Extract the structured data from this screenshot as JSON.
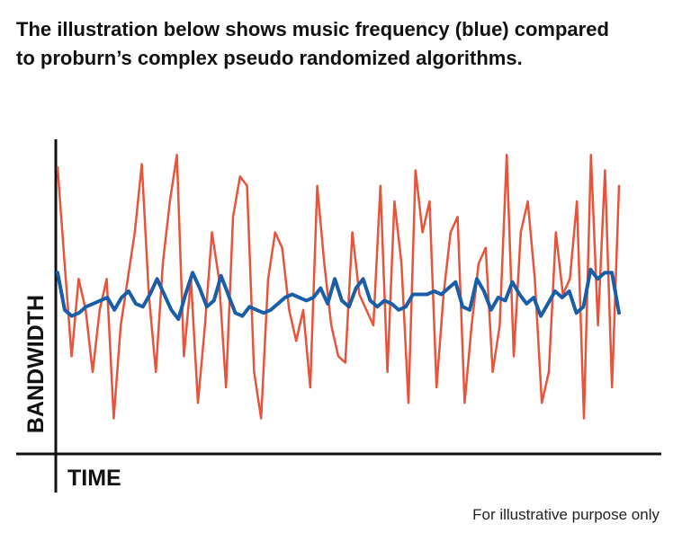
{
  "chart_data": {
    "type": "line",
    "title": [
      "The illustration below shows music frequency (blue) compared",
      "to proburn’s complex pseudo randomized algorithms."
    ],
    "x_label": "TIME",
    "y_label": "BANDWIDTH",
    "annotation": "For illustrative purpose only",
    "ylim": [
      0,
      100
    ],
    "series": [
      {
        "color": "#e8533a",
        "values": [
          91,
          60,
          30,
          55,
          45,
          25,
          45,
          55,
          10,
          40,
          55,
          70,
          92,
          50,
          25,
          60,
          80,
          95,
          30,
          55,
          15,
          40,
          70,
          55,
          20,
          75,
          88,
          85,
          25,
          10,
          55,
          70,
          65,
          45,
          35,
          45,
          20,
          85,
          60,
          40,
          30,
          28,
          70,
          50,
          45,
          40,
          85,
          25,
          80,
          60,
          15,
          90,
          70,
          80,
          20,
          50,
          70,
          75,
          15,
          40,
          60,
          65,
          25,
          40,
          95,
          30,
          70,
          80,
          55,
          15,
          25,
          70,
          50,
          55,
          80,
          10,
          95,
          40,
          90,
          20,
          85
        ]
      },
      {
        "color": "#1a5ea8",
        "values": [
          57,
          45,
          43,
          44,
          46,
          47,
          48,
          49,
          45,
          49,
          51,
          47,
          46,
          50,
          55,
          50,
          45,
          42,
          50,
          57,
          52,
          46,
          48,
          56,
          50,
          44,
          43,
          46,
          45,
          44,
          45,
          47,
          49,
          50,
          49,
          48,
          49,
          52,
          47,
          55,
          48,
          46,
          52,
          55,
          48,
          46,
          48,
          47,
          45,
          46,
          50,
          50,
          50,
          51,
          50,
          52,
          54,
          46,
          45,
          55,
          51,
          45,
          49,
          48,
          54,
          50,
          47,
          49,
          43,
          47,
          51,
          49,
          51,
          44,
          46,
          58,
          55,
          57,
          57,
          44
        ]
      }
    ]
  }
}
